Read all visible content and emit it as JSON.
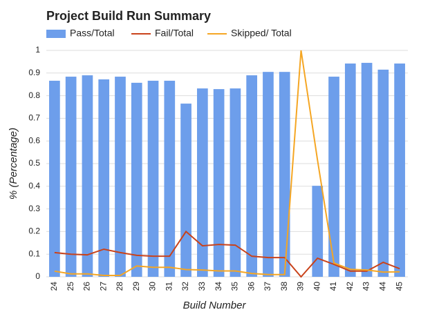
{
  "chart_data": {
    "type": "bar-line",
    "title": "Project Build Run Summary",
    "xlabel": "Build Number",
    "ylabel": "% (Percentage)",
    "categories": [
      "24",
      "25",
      "26",
      "27",
      "28",
      "29",
      "30",
      "31",
      "32",
      "33",
      "34",
      "35",
      "36",
      "37",
      "38",
      "39",
      "40",
      "41",
      "42",
      "43",
      "44",
      "45"
    ],
    "series": [
      {
        "name": "Pass/Total",
        "type": "bar",
        "color": "#6d9eeb",
        "values": [
          0.866,
          0.884,
          0.89,
          0.872,
          0.884,
          0.857,
          0.866,
          0.866,
          0.765,
          0.832,
          0.829,
          0.832,
          0.89,
          0.905,
          0.905,
          0,
          0.402,
          0.884,
          0.942,
          0.945,
          0.915,
          0.942
        ]
      },
      {
        "name": "Fail/Total",
        "type": "line",
        "color": "#c9421a",
        "values": [
          0.107,
          0.1,
          0.097,
          0.122,
          0.107,
          0.095,
          0.091,
          0.091,
          0.2,
          0.137,
          0.143,
          0.14,
          0.091,
          0.085,
          0.085,
          0,
          0.082,
          0.055,
          0.025,
          0.025,
          0.064,
          0.036
        ]
      },
      {
        "name": "Skipped/ Total",
        "type": "line",
        "color": "#f5a623",
        "values": [
          0.025,
          0.013,
          0.013,
          0.006,
          0.006,
          0.048,
          0.042,
          0.042,
          0.032,
          0.03,
          0.026,
          0.026,
          0.015,
          0.01,
          0.01,
          1,
          0.516,
          0.061,
          0.033,
          0.03,
          0.021,
          0.022
        ]
      }
    ],
    "ylim": [
      0,
      1
    ],
    "yticks": [
      0,
      0.1,
      0.2,
      0.3,
      0.4,
      0.5,
      0.6,
      0.7,
      0.8,
      0.9,
      1
    ],
    "grid": true
  }
}
